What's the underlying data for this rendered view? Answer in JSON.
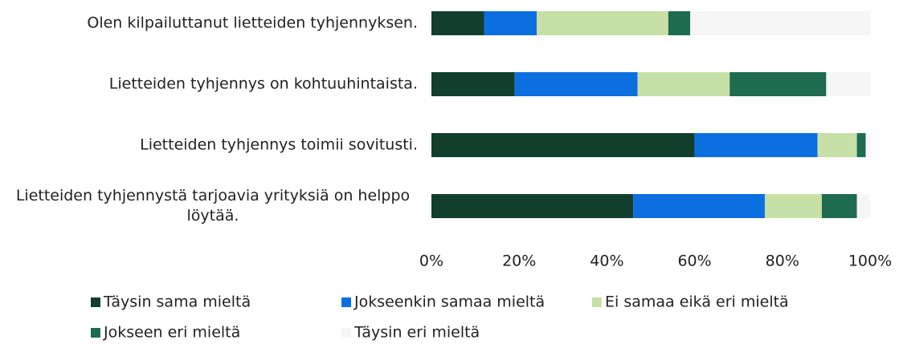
{
  "chart_data": {
    "type": "stacked-bar-horizontal",
    "categories": [
      "Olen kilpailuttanut lietteiden tyhjennyksen.",
      "Lietteiden tyhjennys on kohtuuhintaista.",
      "Lietteiden tyhjennys toimii sovitusti.",
      "Lietteiden tyhjennystä tarjoavia yrityksiä on helppo löytää."
    ],
    "series": [
      {
        "name": "Täysin sama mieltä",
        "color": "#123f2d",
        "values": [
          12,
          19,
          60,
          46
        ]
      },
      {
        "name": "Jokseenkin samaa mieltä",
        "color": "#0b6fe0",
        "values": [
          12,
          28,
          28,
          30
        ]
      },
      {
        "name": "Ei samaa eikä eri mieltä",
        "color": "#c6e0a6",
        "values": [
          30,
          21,
          9,
          13
        ]
      },
      {
        "name": "Jokseen eri mieltä",
        "color": "#1f6b50",
        "values": [
          5,
          22,
          2,
          8
        ]
      },
      {
        "name": "Täysin eri mieltä",
        "color": "#f6f6f6",
        "values": [
          41,
          10,
          1,
          3
        ]
      }
    ],
    "xlim": [
      0,
      100
    ],
    "xticks": [
      {
        "value": 0,
        "label": "0%"
      },
      {
        "value": 20,
        "label": "20%"
      },
      {
        "value": 40,
        "label": "40%"
      },
      {
        "value": 60,
        "label": "60%"
      },
      {
        "value": 80,
        "label": "80%"
      },
      {
        "value": 100,
        "label": "100%"
      }
    ]
  }
}
